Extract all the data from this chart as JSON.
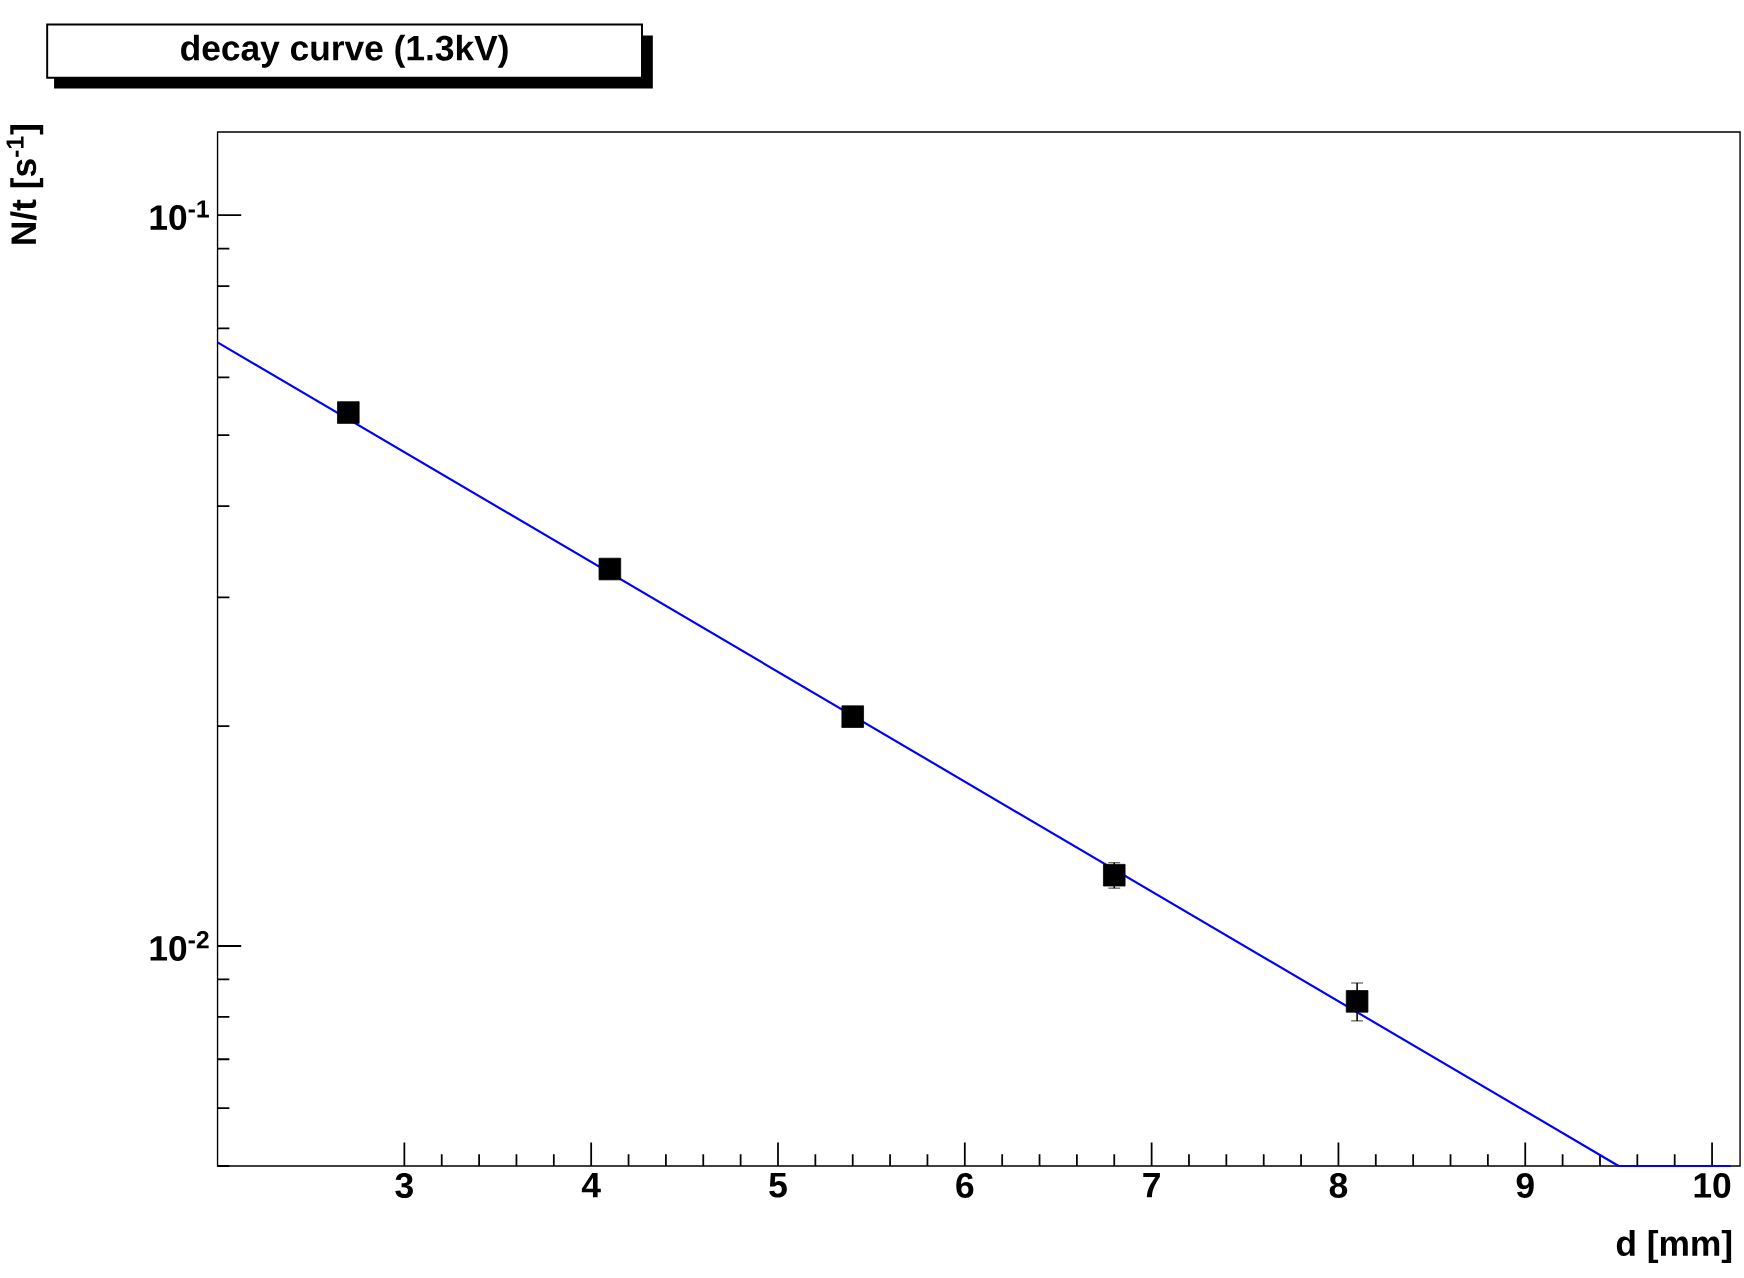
{
  "chart_data": {
    "type": "scatter",
    "title": "decay curve (1.3kV)",
    "xlabel": "d [mm]",
    "ylabel": "N/t [s$^{-1}$]",
    "log": "y",
    "xlim": [
      2.0,
      10.15
    ],
    "ylim": [
      0.005,
      0.13
    ],
    "xticks": [
      3,
      4,
      5,
      6,
      7,
      8,
      9,
      10
    ],
    "yticks": [
      {
        "value": 0.005,
        "label": null
      },
      {
        "value": 0.006,
        "label": null
      },
      {
        "value": 0.007,
        "label": null
      },
      {
        "value": 0.008,
        "label": null
      },
      {
        "value": 0.009,
        "label": null
      },
      {
        "value": 0.01,
        "label": "10$^{-2}$"
      },
      {
        "value": 0.02,
        "label": null
      },
      {
        "value": 0.03,
        "label": null
      },
      {
        "value": 0.04,
        "label": null
      },
      {
        "value": 0.05,
        "label": null
      },
      {
        "value": 0.06,
        "label": null
      },
      {
        "value": 0.07,
        "label": null
      },
      {
        "value": 0.08,
        "label": null
      },
      {
        "value": 0.09,
        "label": null
      },
      {
        "value": 0.1,
        "label": "10$^{-1}$"
      }
    ],
    "series": [
      {
        "type": "scatter",
        "marker": "square",
        "color": "#000000",
        "x": [
          2.7,
          4.1,
          5.4,
          6.8,
          8.1
        ],
        "values": [
          0.0537,
          0.0328,
          0.0206,
          0.0125,
          0.0084
        ],
        "errors": [
          0.0005,
          0.0004,
          0.0003,
          0.0005,
          0.0005
        ]
      },
      {
        "type": "line",
        "marker": "none",
        "color": "#0000ff",
        "x": [
          2.0,
          9.5,
          10.1
        ],
        "values": [
          0.067,
          0.005,
          0.005
        ]
      }
    ]
  }
}
